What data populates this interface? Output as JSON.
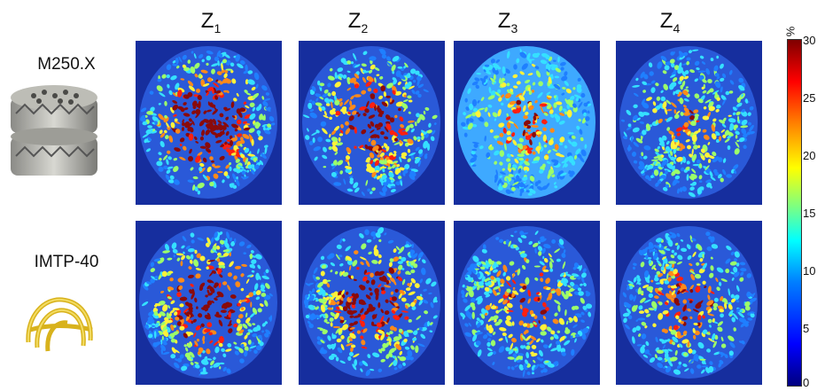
{
  "columns": [
    {
      "base": "Z",
      "sub": "1"
    },
    {
      "base": "Z",
      "sub": "2"
    },
    {
      "base": "Z",
      "sub": "3"
    },
    {
      "base": "Z",
      "sub": "4"
    }
  ],
  "rows": [
    {
      "label": "M250.X",
      "packing_image": "metal-structured-packing"
    },
    {
      "label": "IMTP-40",
      "packing_image": "gold-random-ring-packing"
    }
  ],
  "colorbar": {
    "unit": "%",
    "ticks": [
      "30",
      "25",
      "20",
      "15",
      "10",
      "5",
      "0"
    ],
    "range": [
      0,
      30
    ]
  },
  "panel_core_level": [
    [
      1.0,
      0.8,
      0.55,
      0.45
    ],
    [
      0.9,
      0.85,
      0.6,
      0.6
    ]
  ]
}
